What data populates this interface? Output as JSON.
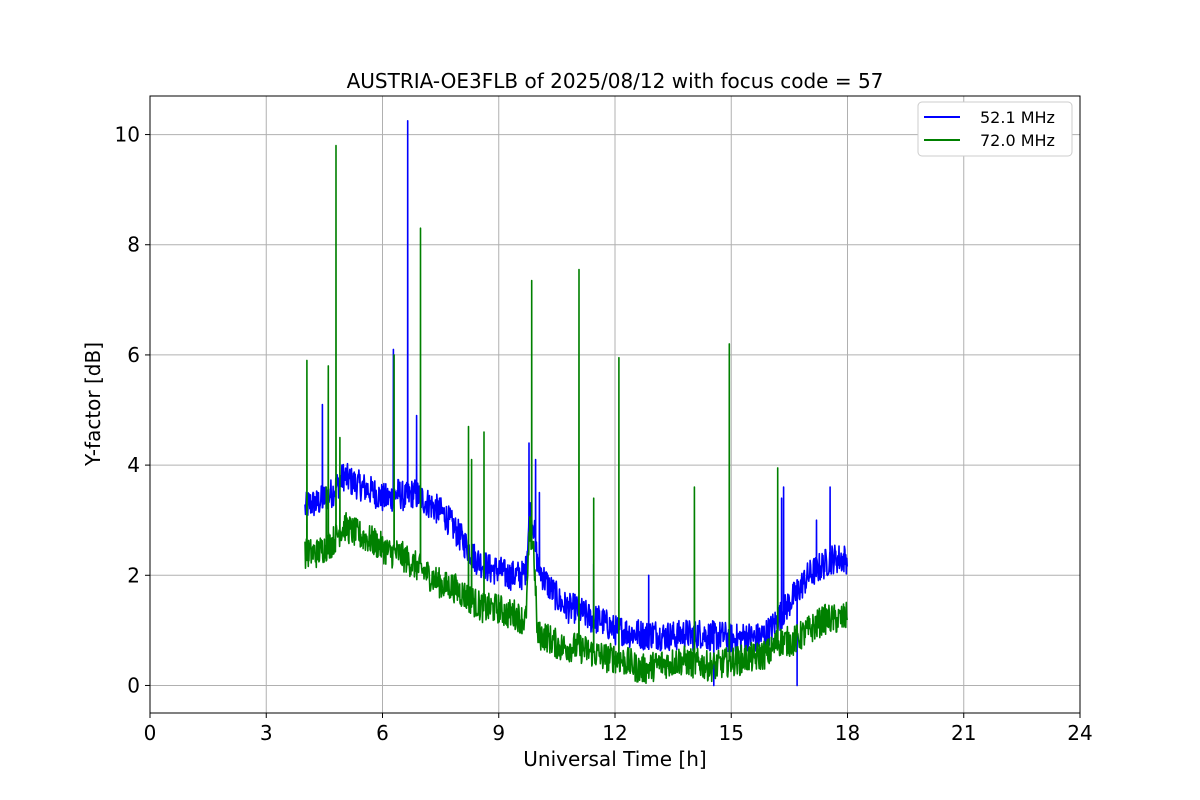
{
  "chart_data": {
    "type": "line",
    "title": "AUSTRIA-OE3FLB of 2025/08/12 with focus code = 57",
    "xlabel": "Universal Time [h]",
    "ylabel": "Y-factor [dB]",
    "xlim": [
      0,
      24
    ],
    "ylim": [
      -0.5,
      10.7
    ],
    "x_ticks": [
      0,
      3,
      6,
      9,
      12,
      15,
      18,
      21,
      24
    ],
    "y_ticks": [
      0,
      2,
      4,
      6,
      8,
      10
    ],
    "grid": true,
    "legend_position": "top-right",
    "series": [
      {
        "name": "52.1 MHz",
        "color": "#0000ff",
        "x": [
          4.0,
          4.1,
          4.3,
          4.5,
          4.7,
          5.0,
          5.2,
          5.5,
          5.8,
          6.0,
          6.2,
          6.4,
          6.6,
          6.8,
          7.0,
          7.2,
          7.4,
          7.6,
          7.8,
          8.0,
          8.2,
          8.4,
          8.6,
          8.8,
          9.0,
          9.2,
          9.4,
          9.6,
          9.7,
          9.8,
          9.9,
          10.0,
          10.2,
          10.4,
          10.6,
          10.8,
          11.0,
          11.2,
          11.4,
          11.6,
          11.8,
          12.0,
          12.2,
          12.4,
          12.6,
          12.8,
          13.0,
          13.2,
          13.4,
          13.6,
          13.8,
          14.0,
          14.2,
          14.4,
          14.6,
          14.8,
          15.0,
          15.2,
          15.4,
          15.6,
          15.8,
          16.0,
          16.2,
          16.4,
          16.6,
          16.8,
          17.0,
          17.2,
          17.4,
          17.6,
          17.8,
          18.0
        ],
        "y": [
          3.2,
          3.3,
          3.3,
          3.4,
          3.5,
          3.8,
          3.7,
          3.6,
          3.5,
          3.4,
          3.4,
          3.5,
          3.4,
          3.5,
          3.4,
          3.3,
          3.2,
          3.1,
          2.9,
          2.7,
          2.5,
          2.3,
          2.2,
          2.1,
          2.1,
          2.0,
          2.0,
          2.0,
          2.1,
          3.2,
          2.9,
          2.2,
          1.9,
          1.7,
          1.5,
          1.4,
          1.4,
          1.3,
          1.2,
          1.2,
          1.1,
          1.0,
          1.0,
          0.95,
          0.95,
          0.9,
          0.95,
          0.9,
          0.9,
          0.9,
          0.95,
          0.9,
          0.95,
          0.9,
          0.9,
          0.9,
          0.85,
          0.85,
          0.9,
          0.85,
          0.9,
          1.0,
          1.2,
          1.4,
          1.6,
          1.8,
          2.0,
          2.1,
          2.2,
          2.3,
          2.3,
          2.3
        ],
        "spikes": [
          [
            4.45,
            5.1
          ],
          [
            6.28,
            6.1
          ],
          [
            6.65,
            10.25
          ],
          [
            6.88,
            4.9
          ],
          [
            9.78,
            4.4
          ],
          [
            9.95,
            4.1
          ],
          [
            10.05,
            3.5
          ],
          [
            11.45,
            2.2
          ],
          [
            12.87,
            2.0
          ],
          [
            16.3,
            3.4
          ],
          [
            16.35,
            3.6
          ],
          [
            16.7,
            0.0
          ],
          [
            17.2,
            3.0
          ],
          [
            17.55,
            3.6
          ],
          [
            14.55,
            0.0
          ]
        ]
      },
      {
        "name": "72.0 MHz",
        "color": "#008000",
        "x": [
          4.0,
          4.1,
          4.3,
          4.5,
          4.7,
          5.0,
          5.2,
          5.5,
          5.8,
          6.0,
          6.2,
          6.4,
          6.6,
          6.8,
          7.0,
          7.2,
          7.4,
          7.6,
          7.8,
          8.0,
          8.2,
          8.4,
          8.6,
          8.8,
          9.0,
          9.2,
          9.4,
          9.6,
          9.7,
          9.8,
          9.9,
          10.0,
          10.2,
          10.4,
          10.6,
          10.8,
          11.0,
          11.2,
          11.4,
          11.6,
          11.8,
          12.0,
          12.2,
          12.4,
          12.6,
          12.8,
          13.0,
          13.2,
          13.4,
          13.6,
          13.8,
          14.0,
          14.2,
          14.4,
          14.6,
          14.8,
          15.0,
          15.2,
          15.4,
          15.6,
          15.8,
          16.0,
          16.2,
          16.4,
          16.6,
          16.8,
          17.0,
          17.2,
          17.4,
          17.6,
          17.8,
          18.0
        ],
        "y": [
          2.4,
          2.4,
          2.4,
          2.5,
          2.6,
          2.9,
          2.8,
          2.7,
          2.6,
          2.5,
          2.4,
          2.4,
          2.3,
          2.2,
          2.1,
          2.0,
          1.9,
          1.8,
          1.8,
          1.7,
          1.6,
          1.5,
          1.4,
          1.4,
          1.4,
          1.3,
          1.3,
          1.2,
          1.2,
          2.8,
          2.5,
          0.9,
          0.9,
          0.8,
          0.7,
          0.7,
          0.7,
          0.65,
          0.6,
          0.55,
          0.5,
          0.5,
          0.45,
          0.4,
          0.3,
          0.3,
          0.35,
          0.4,
          0.4,
          0.45,
          0.45,
          0.4,
          0.4,
          0.35,
          0.35,
          0.4,
          0.45,
          0.45,
          0.5,
          0.5,
          0.55,
          0.6,
          0.8,
          0.8,
          0.8,
          0.9,
          1.0,
          1.1,
          1.2,
          1.2,
          1.2,
          1.25
        ],
        "spikes": [
          [
            4.05,
            5.9
          ],
          [
            4.55,
            3.6
          ],
          [
            4.6,
            5.8
          ],
          [
            4.8,
            9.8
          ],
          [
            4.9,
            4.5
          ],
          [
            6.3,
            6.0
          ],
          [
            6.98,
            8.3
          ],
          [
            8.22,
            4.7
          ],
          [
            8.3,
            4.1
          ],
          [
            8.62,
            4.6
          ],
          [
            9.85,
            7.35
          ],
          [
            11.07,
            7.55
          ],
          [
            11.45,
            3.4
          ],
          [
            12.1,
            5.95
          ],
          [
            14.05,
            3.6
          ],
          [
            14.95,
            6.2
          ],
          [
            16.2,
            3.95
          ]
        ]
      }
    ]
  }
}
